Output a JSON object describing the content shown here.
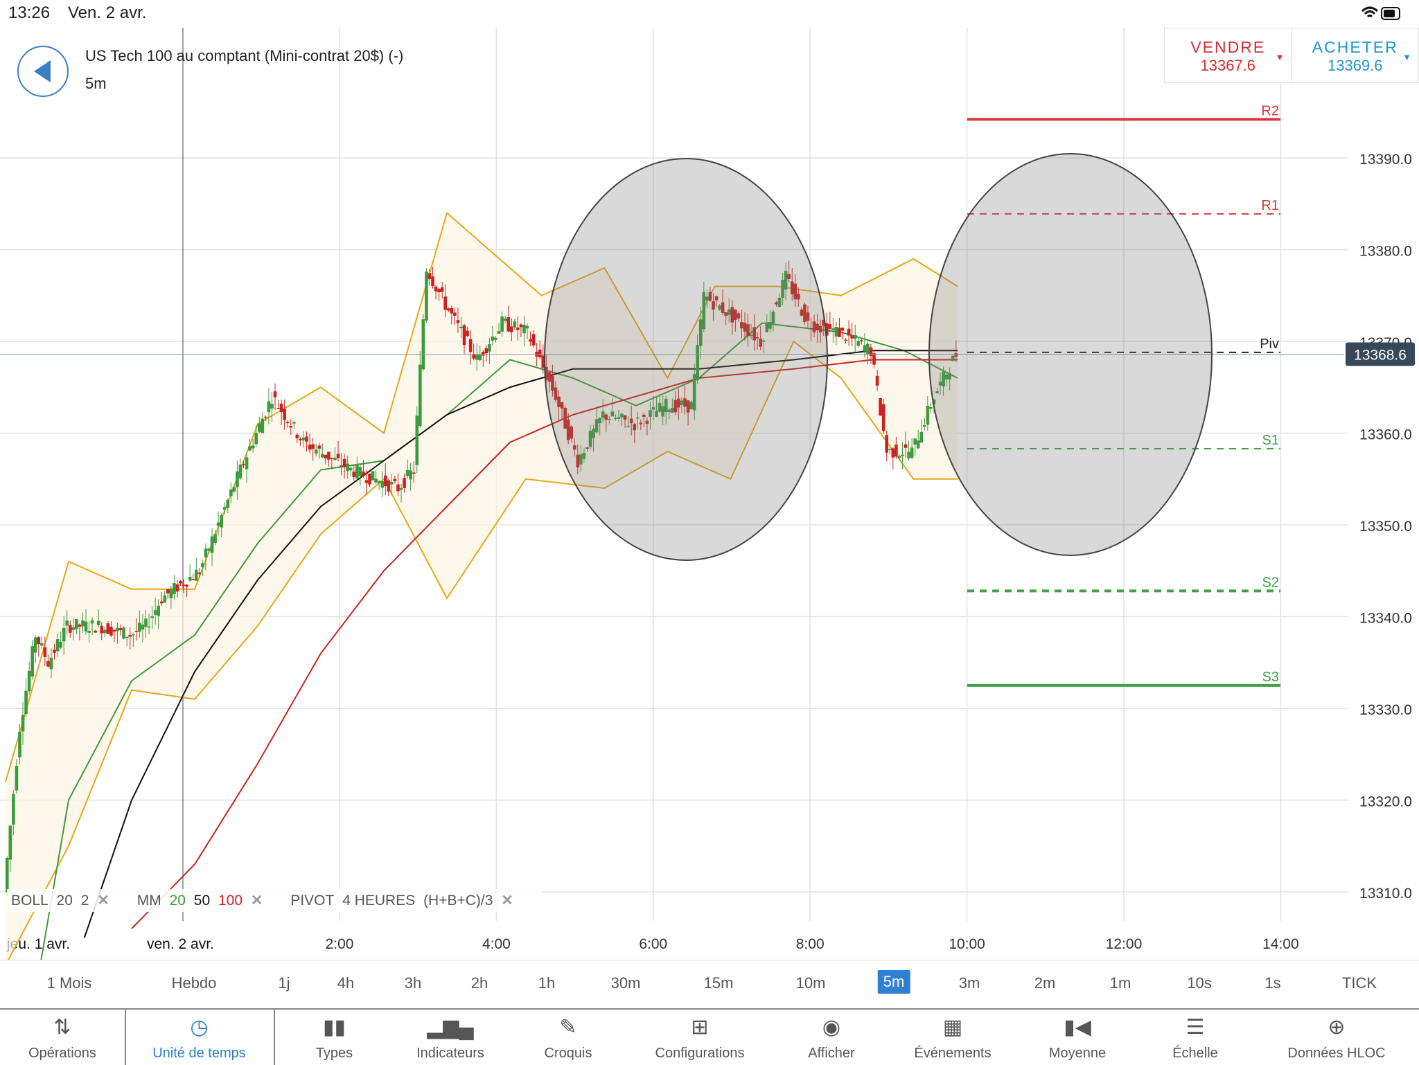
{
  "status_bar": {
    "time": "13:26",
    "date": "Ven. 2 avr."
  },
  "instrument": {
    "name": "US Tech 100 au comptant (Mini-contrat 20$) (-)",
    "timeframe": "5m"
  },
  "trade": {
    "sell": {
      "label": "VENDRE",
      "price": "13367.6"
    },
    "buy": {
      "label": "ACHETER",
      "price": "13369.6"
    }
  },
  "colors": {
    "bull": "#3d9a3d",
    "bear": "#cc2222",
    "ma20": "#3d9a3d",
    "ma50": "#111111",
    "ma100": "#cc2222",
    "bollinger": "#e6a817",
    "resistance": "#d9383a",
    "support": "#43a047",
    "accent": "#2f7fd3"
  },
  "chart_data": {
    "type": "candlestick",
    "ylim": [
      13305,
      13409
    ],
    "y_ticks": [
      "13310.0",
      "13320.0",
      "13330.0",
      "13340.0",
      "13350.0",
      "13360.0",
      "13370.0",
      "13380.0",
      "13390.0"
    ],
    "time_ticks": [
      "2:00",
      "4:00",
      "6:00",
      "8:00",
      "10:00",
      "12:00",
      "14:00"
    ],
    "date_labels": [
      "jeu. 1 avr.",
      "ven. 2 avr."
    ],
    "last_price": "13368.6",
    "pivots": [
      {
        "label": "R2",
        "value": 13394.2
      },
      {
        "label": "R1",
        "value": 13383.9
      },
      {
        "label": "Piv",
        "value": 13368.8
      },
      {
        "label": "S1",
        "value": 13358.3
      },
      {
        "label": "S2",
        "value": 13342.8
      },
      {
        "label": "S3",
        "value": 13332.5
      }
    ],
    "price_path": [
      [
        0,
        13310
      ],
      [
        5,
        13328
      ],
      [
        10,
        13338
      ],
      [
        14,
        13335
      ],
      [
        20,
        13339
      ],
      [
        30,
        13339
      ],
      [
        40,
        13338
      ],
      [
        45,
        13339
      ],
      [
        50,
        13342
      ],
      [
        62,
        13345
      ],
      [
        75,
        13356
      ],
      [
        85,
        13364
      ],
      [
        95,
        13359
      ],
      [
        110,
        13356
      ],
      [
        125,
        13354
      ],
      [
        130,
        13356
      ],
      [
        134,
        13378
      ],
      [
        140,
        13374
      ],
      [
        150,
        13368
      ],
      [
        158,
        13372
      ],
      [
        166,
        13371
      ],
      [
        175,
        13364
      ],
      [
        182,
        13357
      ],
      [
        190,
        13362
      ],
      [
        200,
        13361
      ],
      [
        210,
        13363
      ],
      [
        218,
        13363
      ],
      [
        222,
        13375
      ],
      [
        230,
        13373
      ],
      [
        240,
        13370
      ],
      [
        248,
        13377
      ],
      [
        255,
        13372
      ],
      [
        265,
        13371
      ],
      [
        275,
        13369
      ],
      [
        280,
        13358
      ],
      [
        288,
        13358
      ],
      [
        295,
        13364
      ],
      [
        302,
        13368.6
      ]
    ],
    "bollinger_upper": [
      [
        0,
        13322
      ],
      [
        20,
        13346
      ],
      [
        40,
        13343
      ],
      [
        60,
        13343
      ],
      [
        80,
        13361
      ],
      [
        100,
        13365
      ],
      [
        120,
        13360
      ],
      [
        140,
        13384
      ],
      [
        170,
        13375
      ],
      [
        190,
        13378
      ],
      [
        210,
        13366
      ],
      [
        225,
        13376
      ],
      [
        245,
        13376
      ],
      [
        265,
        13375
      ],
      [
        288,
        13379
      ],
      [
        302,
        13376
      ]
    ],
    "bollinger_lower": [
      [
        0,
        13302
      ],
      [
        20,
        13315
      ],
      [
        40,
        13332
      ],
      [
        60,
        13331
      ],
      [
        80,
        13339
      ],
      [
        100,
        13349
      ],
      [
        120,
        13355
      ],
      [
        140,
        13342
      ],
      [
        165,
        13355
      ],
      [
        190,
        13354
      ],
      [
        210,
        13358
      ],
      [
        230,
        13355
      ],
      [
        250,
        13370
      ],
      [
        265,
        13366
      ],
      [
        288,
        13355
      ],
      [
        302,
        13355
      ]
    ],
    "series": [
      {
        "name": "MM 20",
        "points": [
          [
            10,
            13300
          ],
          [
            20,
            13320
          ],
          [
            40,
            13333
          ],
          [
            60,
            13338
          ],
          [
            80,
            13348
          ],
          [
            100,
            13356
          ],
          [
            120,
            13357
          ],
          [
            140,
            13362
          ],
          [
            160,
            13368
          ],
          [
            180,
            13366
          ],
          [
            200,
            13363
          ],
          [
            220,
            13366
          ],
          [
            240,
            13372
          ],
          [
            265,
            13371
          ],
          [
            285,
            13369
          ],
          [
            302,
            13366
          ]
        ]
      },
      {
        "name": "MM 50",
        "points": [
          [
            25,
            13305
          ],
          [
            40,
            13320
          ],
          [
            60,
            13334
          ],
          [
            80,
            13344
          ],
          [
            100,
            13352
          ],
          [
            120,
            13357
          ],
          [
            140,
            13362
          ],
          [
            160,
            13365
          ],
          [
            180,
            13367
          ],
          [
            200,
            13367
          ],
          [
            220,
            13367
          ],
          [
            250,
            13368
          ],
          [
            275,
            13369
          ],
          [
            302,
            13369
          ]
        ]
      },
      {
        "name": "MM 100",
        "points": [
          [
            40,
            13306
          ],
          [
            60,
            13313
          ],
          [
            80,
            13324
          ],
          [
            100,
            13336
          ],
          [
            120,
            13345
          ],
          [
            140,
            13352
          ],
          [
            160,
            13359
          ],
          [
            180,
            13362
          ],
          [
            200,
            13364
          ],
          [
            220,
            13366
          ],
          [
            250,
            13367
          ],
          [
            275,
            13368
          ],
          [
            302,
            13368
          ]
        ]
      }
    ]
  },
  "indicators": {
    "boll": "BOLL",
    "boll_period": "20",
    "boll_dev": "2",
    "mm": "MM",
    "mm20": "20",
    "mm50": "50",
    "mm100": "100",
    "pivot": "PIVOT",
    "pivot_period": "4 HEURES",
    "pivot_formula": "(H+B+C)/3"
  },
  "timeframes": [
    "1 Mois",
    "Hebdo",
    "1j",
    "4h",
    "3h",
    "2h",
    "1h",
    "30m",
    "15m",
    "10m",
    "5m",
    "3m",
    "2m",
    "1m",
    "10s",
    "1s",
    "TICK"
  ],
  "active_timeframe": "5m",
  "tabs": [
    "Opérations",
    "Unité de temps",
    "Types",
    "Indicateurs",
    "Croquis",
    "Configurations",
    "Afficher",
    "Événements",
    "Moyenne",
    "Échelle",
    "Données HLOC"
  ]
}
